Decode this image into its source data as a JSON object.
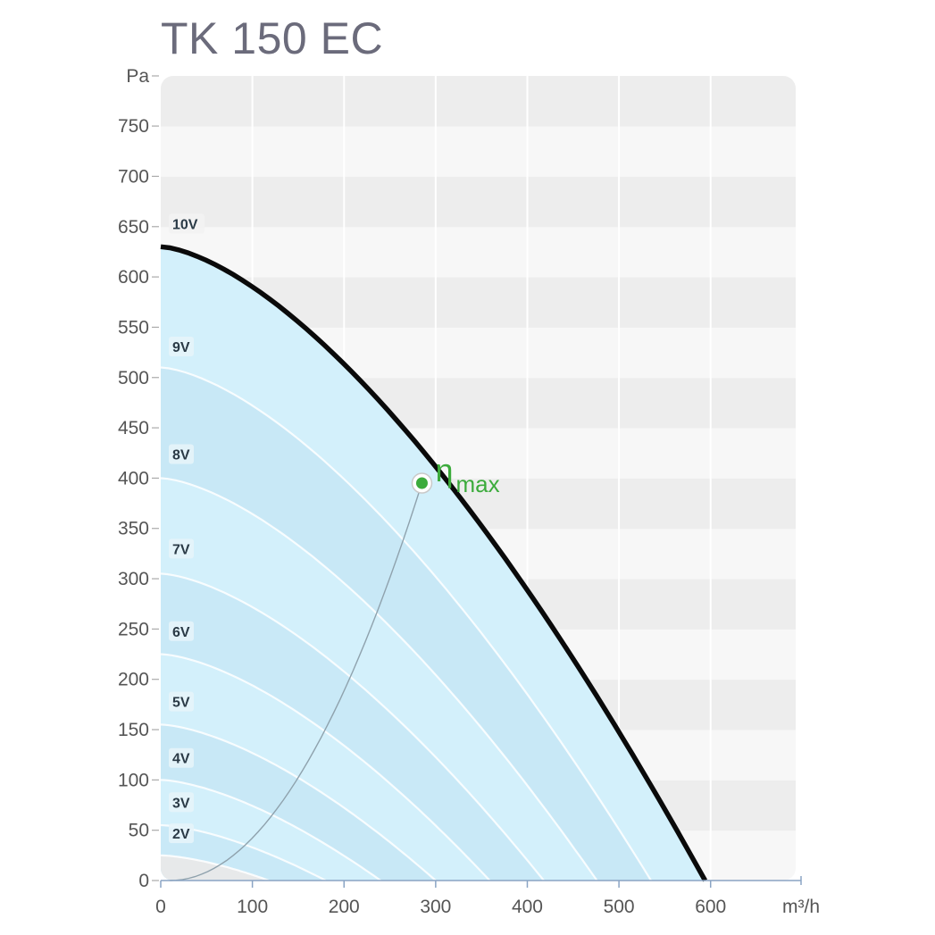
{
  "chart_data": {
    "type": "line",
    "title": "TK 150 EC",
    "xlabel": "m³/h",
    "ylabel": "Pa",
    "xlim": [
      0,
      700
    ],
    "ylim": [
      0,
      800
    ],
    "x_ticks": [
      "0",
      "100",
      "200",
      "300",
      "400",
      "500",
      "600"
    ],
    "x_tick_values": [
      0,
      100,
      200,
      300,
      400,
      500,
      600
    ],
    "y_ticks": [
      "0",
      "50",
      "100",
      "150",
      "200",
      "250",
      "300",
      "350",
      "400",
      "450",
      "500",
      "550",
      "600",
      "650",
      "700",
      "750"
    ],
    "y_tick_values": [
      0,
      50,
      100,
      150,
      200,
      250,
      300,
      350,
      400,
      450,
      500,
      550,
      600,
      650,
      700,
      750
    ],
    "y_unit_label": "Pa",
    "series": [
      {
        "name": "10V",
        "label": "10V",
        "p0": 630,
        "qmax": 594
      },
      {
        "name": "9V",
        "label": "9V",
        "p0": 510,
        "qmax": 535
      },
      {
        "name": "8V",
        "label": "8V",
        "p0": 400,
        "qmax": 476
      },
      {
        "name": "7V",
        "label": "7V",
        "p0": 305,
        "qmax": 418
      },
      {
        "name": "6V",
        "label": "6V",
        "p0": 225,
        "qmax": 359
      },
      {
        "name": "5V",
        "label": "5V",
        "p0": 155,
        "qmax": 300
      },
      {
        "name": "4V",
        "label": "4V",
        "p0": 100,
        "qmax": 240
      },
      {
        "name": "3V",
        "label": "3V",
        "p0": 55,
        "qmax": 180
      },
      {
        "name": "2V",
        "label": "2V",
        "p0": 25,
        "qmax": 118
      }
    ],
    "curve_label_values": [
      652,
      530,
      423,
      329,
      247,
      177,
      121,
      77,
      46
    ],
    "efficiency_point": {
      "label": "η",
      "subscript": "max",
      "x": 285,
      "y": 395
    },
    "efficiency_line_origin": {
      "x": 10,
      "y": 0
    }
  }
}
